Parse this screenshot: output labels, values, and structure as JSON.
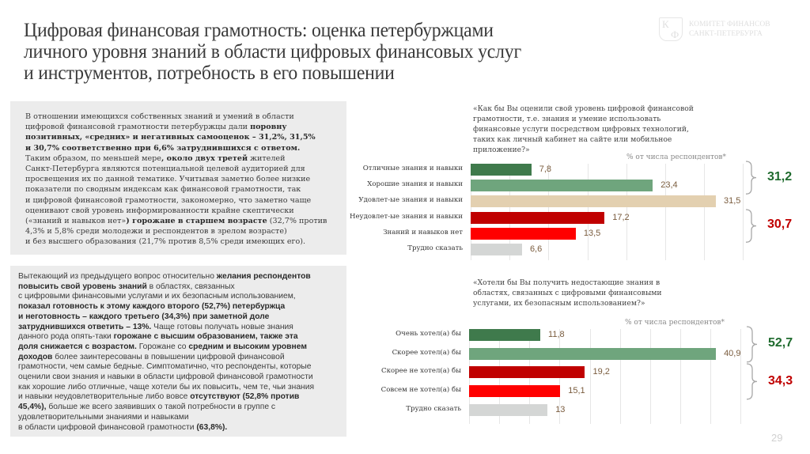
{
  "header": {
    "title": "Цифровая финансовая грамотность: оценка петербуржцами\nличного уровня знаний в области цифровых финансовых услуг\nи инструментов, потребность в его повышении",
    "logo": {
      "monogram_top": "К",
      "monogram_bottom": "Ф",
      "line1": "КОМИТЕТ ФИНАНСОВ",
      "line2": "САНКТ-ПЕТЕРБУРГА"
    }
  },
  "panel1": {
    "segments": [
      {
        "t": "В отношении имеющихся собственных знаний и умений в области\nцифровой финансовой грамотности петербуржцы дали ",
        "b": false
      },
      {
        "t": "поровну\nпозитивных, «средних» и негативных самооценок – 31,2%, 31,5%\nи 30,7% соответственно при 6,6% затруднившихся с ответом.",
        "b": true
      },
      {
        "t": "\nТаким образом, по меньшей мере",
        "b": false
      },
      {
        "t": ", около двух третей",
        "b": true
      },
      {
        "t": " жителей\nСанкт-Петербурга являются потенциальной целевой аудиторией для\nпросвещения их по данной тематике. Учитывая заметно более низкие\nпоказатели по сводным индексам как финансовой грамотности, так\nи цифровой финансовой грамотности, закономерно, что заметно чаще\nоценивают свой уровень информированности крайне скептически\n(«знаний и навыков нет»",
        "b": false
      },
      {
        "t": ") горожане в старшем возрасте",
        "b": true
      },
      {
        "t": " (32,7% против\n4,3% и 5,8% среди молодежи и респондентов в зрелом возрасте)\nи без высшего образования (21,7% против 8,5% среди имеющих его).",
        "b": false
      }
    ]
  },
  "panel2": {
    "segments": [
      {
        "t": "Вытекающий из предыдущего вопрос относительно ",
        "b": false
      },
      {
        "t": "желания респондентов\nповысить свой уровень знаний",
        "b": true
      },
      {
        "t": " в областях, связанных\nс цифровыми финансовыми услугами и их безопасным использованием,\n",
        "b": false
      },
      {
        "t": "показал готовность к этому каждого второго (52,7%) петербуржца\nи неготовность – каждого третьего (34,3%) при заметной доле\nзатруднившихся ответить – 13%.",
        "b": true
      },
      {
        "t": " Чаще готовы получать новые знания\nданного рода опять-таки ",
        "b": false
      },
      {
        "t": "горожане с высшим образованием, также эта\nдоля снижается с возрастом.",
        "b": true
      },
      {
        "t": " Горожане со ",
        "b": false
      },
      {
        "t": "средним и высоким уровнем\nдоходов",
        "b": true
      },
      {
        "t": " более заинтересованы в повышении цифровой финансовой\nграмотности, чем самые бедные. Симптоматично, что респонденты, которые\nоценили свои знания и навыки в области цифровой финансовой грамотности\nкак хорошие либо отличные, чаще хотели бы их повысить, чем те, чьи знания\nи навыки неудовлетворительные либо вовсе ",
        "b": false
      },
      {
        "t": "отсутствуют (52,8% против\n45,4%),",
        "b": true
      },
      {
        "t": " больше же всего заявивших о такой потребности в группе с\nудовлетворительными знаниями и навыками\nв области цифровой финансовой грамотности ",
        "b": false
      },
      {
        "t": "(63,8%).",
        "b": true
      }
    ]
  },
  "chart_data": [
    {
      "type": "bar",
      "orientation": "horizontal",
      "title": "«Как бы Вы оценили свой уровень цифровой финансовой\nграмотности, т.е. знания и умение использовать\nфинансовые услуги посредством цифровых технологий,\nтаких как личный кабинет на сайте или мобильное\nприложение?»",
      "unit_label": "% от числа респондентов*",
      "categories": [
        "Отличные знания и навыки",
        "Хорошие знания и навыки",
        "Удовлет-ые знания и навыки",
        "Неудовлет-ые знания и навыки",
        "Знаний и навыков нет",
        "Трудно сказать"
      ],
      "values": [
        7.8,
        23.4,
        31.5,
        17.2,
        13.5,
        6.6
      ],
      "value_labels": [
        "7,8",
        "23,4",
        "31,5",
        "17,2",
        "13,5",
        "6,6"
      ],
      "colors": [
        "#3f7a4c",
        "#6fa57d",
        "#e3d0b0",
        "#c00000",
        "#ff0000",
        "#d4d6d5"
      ],
      "xlim": [
        0,
        35
      ],
      "grid": true,
      "grid_step": 5,
      "groups": [
        {
          "label": "31,2",
          "rows": [
            0,
            1
          ],
          "color": "#1f6b2e"
        },
        {
          "label": "30,7",
          "rows": [
            3,
            4
          ],
          "color": "#c00000"
        }
      ]
    },
    {
      "type": "bar",
      "orientation": "horizontal",
      "title": "«Хотели бы Вы получить недостающие знания в\nобластях, связанных с цифровыми финансовыми\nуслугами, их безопасным использованием?»",
      "unit_label": "% от числа респондентов*",
      "categories": [
        "Очень хотел(а) бы",
        "Скорее хотел(а) бы",
        "Скорее не хотел(а) бы",
        "Совсем не хотел(а) бы",
        "Трудно сказать"
      ],
      "values": [
        11.8,
        40.9,
        19.2,
        15.1,
        13
      ],
      "value_labels": [
        "11,8",
        "40,9",
        "19,2",
        "15,1",
        "13"
      ],
      "colors": [
        "#3f7a4c",
        "#6fa57d",
        "#c00000",
        "#ff0000",
        "#d4d6d5"
      ],
      "xlim": [
        0,
        45
      ],
      "grid": true,
      "grid_step": 5,
      "groups": [
        {
          "label": "52,7",
          "rows": [
            0,
            1
          ],
          "color": "#1f6b2e"
        },
        {
          "label": "34,3",
          "rows": [
            2,
            3
          ],
          "color": "#c00000"
        }
      ]
    }
  ],
  "footer": {
    "page_number": "29"
  }
}
